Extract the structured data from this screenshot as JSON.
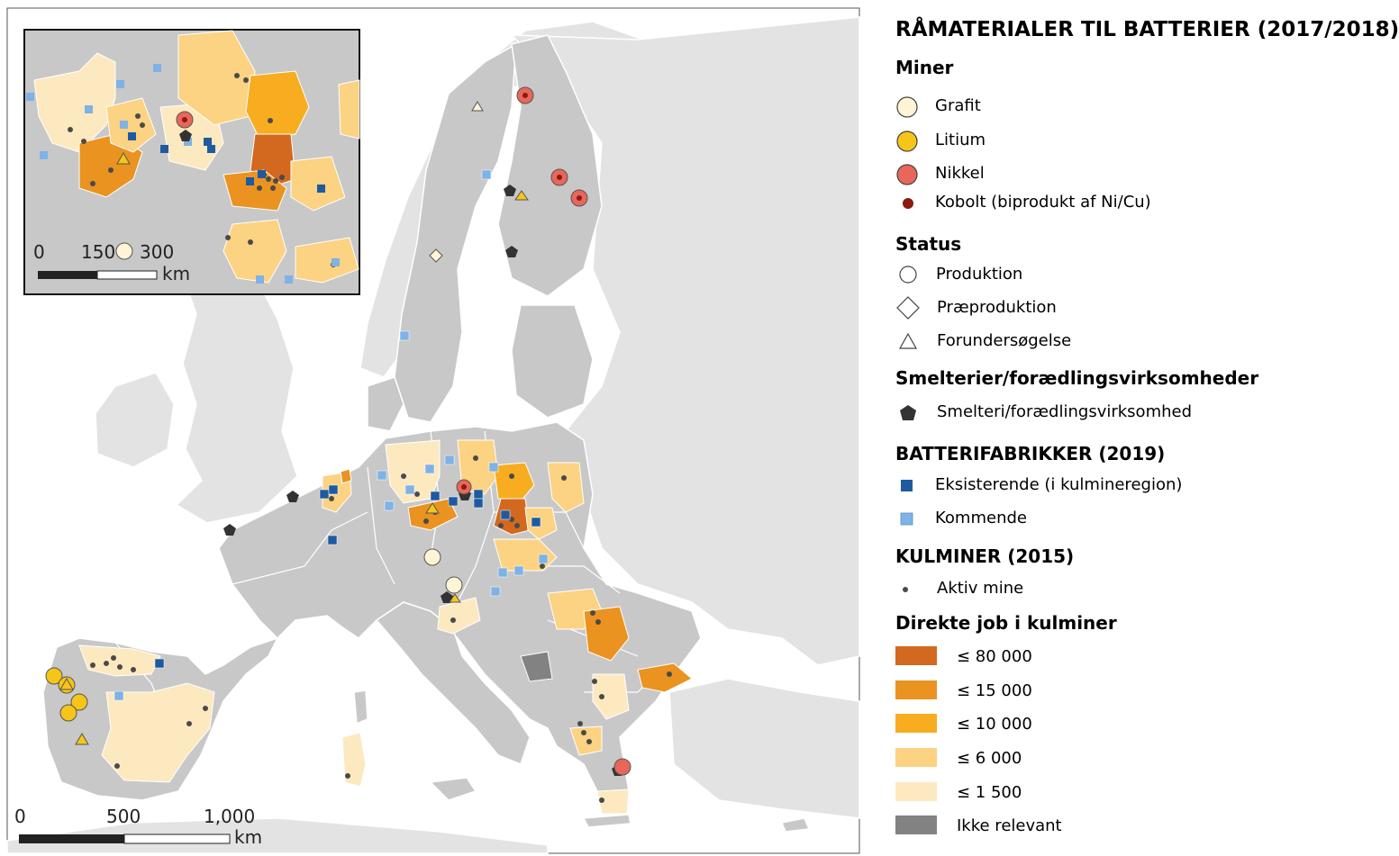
{
  "legend": {
    "title": "RÅMATERIALER TIL BATTERIER (2017/2018)",
    "sections": {
      "mines": {
        "heading": "Miner",
        "items": [
          {
            "label": "Grafit",
            "color": "#fff5d6"
          },
          {
            "label": "Litium",
            "color": "#f5c518"
          },
          {
            "label": "Nikkel",
            "color": "#e8675a"
          },
          {
            "label": "Kobolt (biprodukt af Ni/Cu)",
            "color": "#8b1a10"
          }
        ]
      },
      "status": {
        "heading": "Status",
        "items": [
          {
            "label": "Produktion",
            "shape": "circle"
          },
          {
            "label": "Præproduktion",
            "shape": "diamond"
          },
          {
            "label": "Forundersøgelse",
            "shape": "triangle"
          }
        ]
      },
      "smelters": {
        "heading": "Smelterier/forædlingsvirksomheder",
        "items": [
          {
            "label": "Smelteri/forædlingsvirksomhed",
            "shape": "pentagon",
            "color": "#333333"
          }
        ]
      },
      "battery": {
        "heading": "BATTERIFABRIKKER (2019)",
        "items": [
          {
            "label": "Eksisterende (i kulmineregion)",
            "color": "#1f5aa0"
          },
          {
            "label": "Kommende",
            "color": "#7fb2e5"
          }
        ]
      },
      "coal": {
        "heading": "KULMINER (2015)",
        "items": [
          {
            "label": "Aktiv mine",
            "color": "#4a4a4a"
          }
        ]
      },
      "jobs": {
        "heading": "Direkte job i kulminer",
        "items": [
          {
            "label": "≤ 80 000",
            "color": "#d2691e"
          },
          {
            "label": "≤ 15 000",
            "color": "#ea9320"
          },
          {
            "label": "≤ 10 000",
            "color": "#f7ad1f"
          },
          {
            "label": "≤ 6 000",
            "color": "#fcd283"
          },
          {
            "label": "≤ 1 500",
            "color": "#fde9c0"
          },
          {
            "label": "Ikke relevant",
            "color": "#828282"
          }
        ]
      }
    }
  },
  "map": {
    "sea_color": "#ffffff",
    "land_color": "#c8c8c8",
    "other_land_color": "#e3e3e3",
    "scale": {
      "labels": [
        "0",
        "500",
        "1,000"
      ],
      "unit": "km"
    },
    "inset": {
      "scale": {
        "labels": [
          "0",
          "150",
          "300"
        ],
        "unit": "km"
      }
    }
  }
}
